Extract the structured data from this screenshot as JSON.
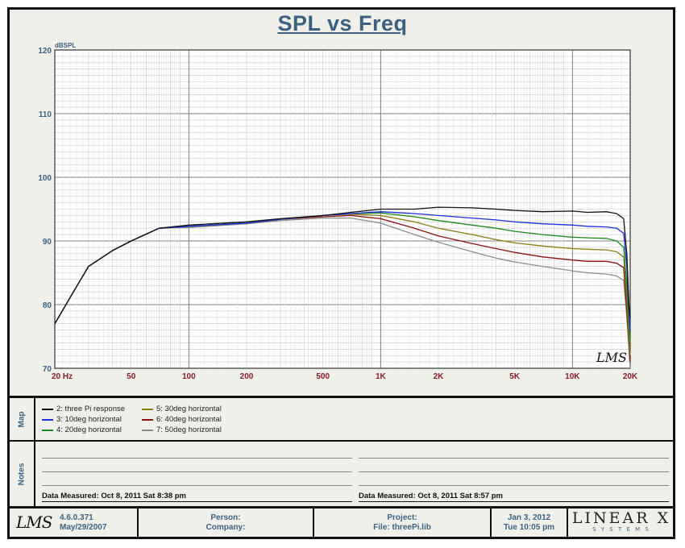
{
  "title": "SPL vs Freq",
  "side_labels": {
    "map": "Map",
    "notes": "Notes"
  },
  "legend": [
    {
      "label": "2: three Pi response",
      "color": "#111111"
    },
    {
      "label": "3: 10deg horizontal",
      "color": "#1c2fe0"
    },
    {
      "label": "4: 20deg horizontal",
      "color": "#1b8a1b"
    },
    {
      "label": "5: 30deg horizontal",
      "color": "#8a7d10"
    },
    {
      "label": "6: 40deg horizontal",
      "color": "#8a1010"
    },
    {
      "label": "7: 50deg horizontal",
      "color": "#8c8c8c"
    }
  ],
  "notes": {
    "left_measured": "Data Measured: Oct  8, 2011  Sat  8:38 pm",
    "right_measured": "Data Measured: Oct  8, 2011  Sat  8:57 pm"
  },
  "footer": {
    "version": "4.6.0.371",
    "version_date": "May/29/2007",
    "person_label": "Person:",
    "company_label": "Company:",
    "project_label": "Project:",
    "file_label": "File: threePi.lib",
    "date": "Jan  3, 2012",
    "time": "Tue 10:05 pm",
    "brand": "LINEAR X",
    "brand_sub": "S Y S T E M S",
    "lms_logo": "LMS"
  },
  "chart_data": {
    "type": "line",
    "title": "SPL vs Freq",
    "ylabel": "dBSPL",
    "xlabel": "",
    "x_scale": "log",
    "xlim": [
      20,
      20000
    ],
    "ylim": [
      70,
      120
    ],
    "grid": true,
    "x_tick_labels": [
      {
        "value": 20,
        "label": "20  Hz"
      },
      {
        "value": 50,
        "label": "50"
      },
      {
        "value": 100,
        "label": "100"
      },
      {
        "value": 200,
        "label": "200"
      },
      {
        "value": 500,
        "label": "500"
      },
      {
        "value": 1000,
        "label": "1K"
      },
      {
        "value": 2000,
        "label": "2K"
      },
      {
        "value": 5000,
        "label": "5K"
      },
      {
        "value": 10000,
        "label": "10K"
      },
      {
        "value": 20000,
        "label": "20K"
      }
    ],
    "y_ticks": [
      70,
      80,
      90,
      100,
      110,
      120
    ],
    "watermark": "LMS",
    "series": [
      {
        "name": "2: three Pi response",
        "color": "#111111",
        "x": [
          20,
          25,
          30,
          40,
          50,
          70,
          100,
          200,
          300,
          500,
          700,
          1000,
          1500,
          2000,
          3000,
          4000,
          5000,
          7000,
          10000,
          12000,
          15000,
          17000,
          18500,
          19200,
          19700,
          20000
        ],
        "y": [
          77,
          82,
          86,
          88.5,
          90,
          92,
          92.5,
          93,
          93.5,
          94,
          94.5,
          95,
          95,
          95.3,
          95.2,
          95,
          94.8,
          94.6,
          94.7,
          94.5,
          94.6,
          94.3,
          93.5,
          88,
          80,
          78
        ]
      },
      {
        "name": "3: 10deg horizontal",
        "color": "#1c2fe0",
        "x": [
          20,
          25,
          30,
          40,
          50,
          70,
          100,
          200,
          300,
          500,
          700,
          1000,
          1500,
          2000,
          3000,
          4000,
          5000,
          7000,
          10000,
          12000,
          15000,
          17000,
          18500,
          19200,
          19700,
          20000
        ],
        "y": [
          77,
          82,
          86,
          88.5,
          90,
          92,
          92.3,
          92.8,
          93.4,
          94,
          94.3,
          94.6,
          94.3,
          94,
          93.6,
          93.3,
          93,
          92.7,
          92.5,
          92.3,
          92.2,
          92,
          91.2,
          86,
          79,
          76
        ]
      },
      {
        "name": "4: 20deg horizontal",
        "color": "#1b8a1b",
        "x": [
          20,
          25,
          30,
          40,
          50,
          70,
          100,
          200,
          300,
          500,
          700,
          1000,
          1500,
          2000,
          3000,
          4000,
          5000,
          7000,
          10000,
          12000,
          15000,
          17000,
          18500,
          19200,
          19700,
          20000
        ],
        "y": [
          77,
          82,
          86,
          88.5,
          90,
          92,
          92.3,
          92.8,
          93.4,
          94,
          94.3,
          94.4,
          93.8,
          93.2,
          92.5,
          92,
          91.5,
          91,
          90.6,
          90.5,
          90.4,
          90,
          89,
          83,
          77,
          74
        ]
      },
      {
        "name": "5: 30deg horizontal",
        "color": "#8a7d10",
        "x": [
          20,
          25,
          30,
          40,
          50,
          70,
          100,
          200,
          300,
          500,
          700,
          1000,
          1500,
          2000,
          3000,
          4000,
          5000,
          7000,
          10000,
          12000,
          15000,
          17000,
          18500,
          19200,
          19700,
          20000
        ],
        "y": [
          77,
          82,
          86,
          88.5,
          90,
          92,
          92.3,
          92.8,
          93.4,
          94,
          94.2,
          94,
          93,
          92,
          91,
          90.2,
          89.7,
          89.2,
          88.8,
          88.7,
          88.6,
          88.3,
          87.5,
          81,
          75,
          72
        ]
      },
      {
        "name": "6: 40deg horizontal",
        "color": "#8a1010",
        "x": [
          20,
          25,
          30,
          40,
          50,
          70,
          100,
          200,
          300,
          500,
          700,
          1000,
          1500,
          2000,
          3000,
          4000,
          5000,
          7000,
          10000,
          12000,
          15000,
          17000,
          18500,
          19200,
          19700,
          20000
        ],
        "y": [
          77,
          82,
          86,
          88.5,
          90,
          92,
          92.3,
          92.8,
          93.4,
          93.8,
          94,
          93.5,
          92,
          90.8,
          89.6,
          88.8,
          88.2,
          87.5,
          87,
          86.8,
          86.8,
          86.5,
          85.8,
          79,
          74,
          71
        ]
      },
      {
        "name": "7: 50deg horizontal",
        "color": "#8c8c8c",
        "x": [
          20,
          25,
          30,
          40,
          50,
          70,
          100,
          200,
          300,
          500,
          700,
          1000,
          1500,
          2000,
          3000,
          4000,
          5000,
          7000,
          10000,
          12000,
          15000,
          17000,
          18500,
          19200,
          19700,
          20000
        ],
        "y": [
          77,
          82,
          86,
          88.5,
          90,
          92,
          92.1,
          92.7,
          93.2,
          93.6,
          93.6,
          92.8,
          91,
          89.8,
          88.3,
          87.3,
          86.7,
          86,
          85.3,
          85,
          84.8,
          84.5,
          83.8,
          78,
          73,
          70
        ]
      }
    ]
  }
}
